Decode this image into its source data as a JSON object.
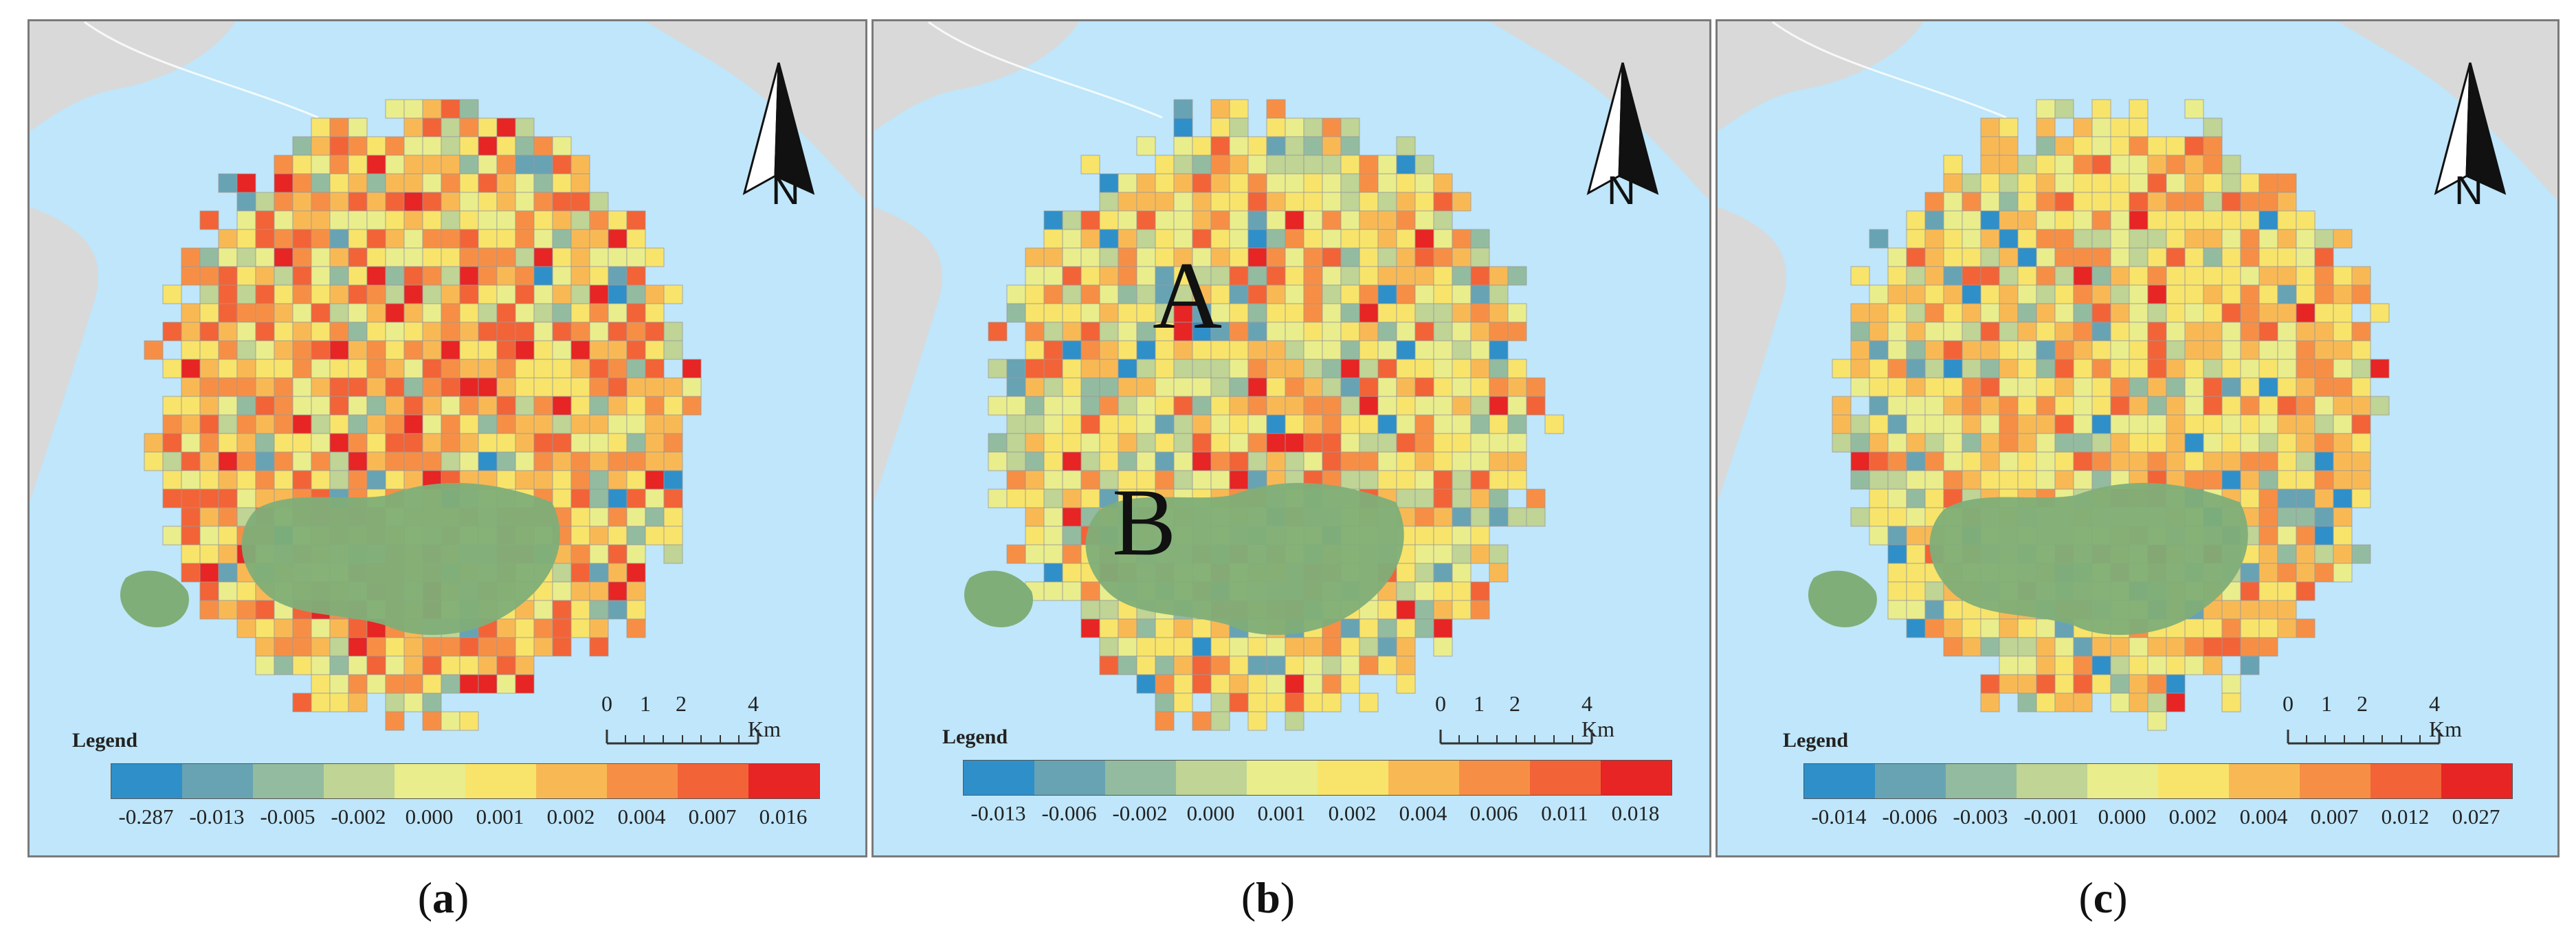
{
  "colors": {
    "sea": "#bfe6fa",
    "land": "#d9d9d9",
    "green_area": "#7fae78",
    "ramp": [
      "#2f8fc9",
      "#68a3b4",
      "#93bba0",
      "#bfd495",
      "#e9ed8c",
      "#f8e46a",
      "#f8b955",
      "#f68f45",
      "#f26337",
      "#e62524"
    ]
  },
  "panels": [
    {
      "id": "a",
      "legend_title": "Legend",
      "legend_values": [
        "-0.287",
        "-0.013",
        "-0.005",
        "-0.002",
        "0.000",
        "0.001",
        "0.002",
        "0.004",
        "0.007",
        "0.016"
      ],
      "scale_ticks": [
        "0",
        "1",
        "2",
        "4 Km"
      ],
      "north_label": "N",
      "caption_open": "(",
      "caption_letter": "a",
      "caption_close": ")",
      "annotations": []
    },
    {
      "id": "b",
      "legend_title": "Legend",
      "legend_values": [
        "-0.013",
        "-0.006",
        "-0.002",
        "0.000",
        "0.001",
        "0.002",
        "0.004",
        "0.006",
        "0.011",
        "0.018"
      ],
      "scale_ticks": [
        "0",
        "1",
        "2",
        "4 Km"
      ],
      "north_label": "N",
      "caption_open": "(",
      "caption_letter": "b",
      "caption_close": ")",
      "annotations": [
        "A",
        "B"
      ]
    },
    {
      "id": "c",
      "legend_title": "Legend",
      "legend_values": [
        "-0.014",
        "-0.006",
        "-0.003",
        "-0.001",
        "0.000",
        "0.002",
        "0.004",
        "0.007",
        "0.012",
        "0.027"
      ],
      "scale_ticks": [
        "0",
        "1",
        "2",
        "4 Km"
      ],
      "north_label": "N",
      "caption_open": "(",
      "caption_letter": "c",
      "caption_close": ")",
      "annotations": []
    }
  ]
}
